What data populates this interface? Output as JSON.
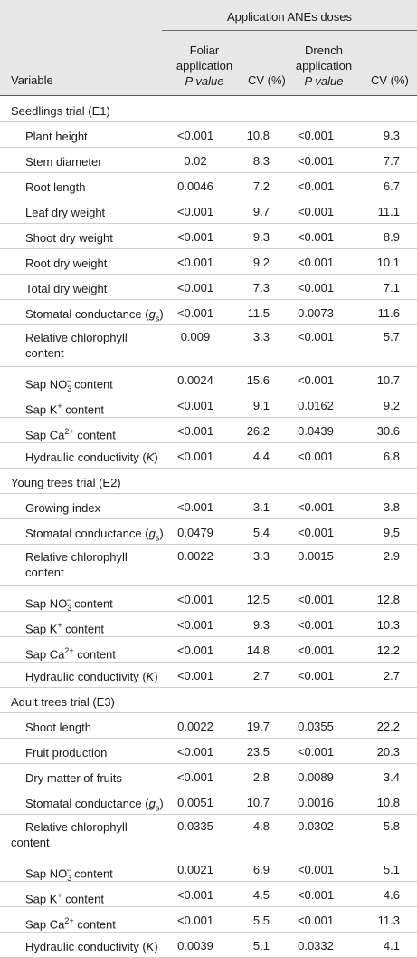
{
  "header": {
    "super": "Application ANEs doses",
    "variable": "Variable",
    "foliar": [
      "Foliar",
      "application",
      "P value"
    ],
    "drench": [
      "Drench",
      "application",
      "P value"
    ],
    "cv1": "CV (%)",
    "cv2": "CV (%)"
  },
  "rows": [
    {
      "type": "section",
      "label": "Seedlings trial (E1)"
    },
    {
      "label": "Plant height",
      "v": [
        "<0.001",
        "10.8",
        "<0.001",
        "9.3"
      ]
    },
    {
      "label": "Stem diameter",
      "v": [
        "0.02",
        "8.3",
        "<0.001",
        "7.7"
      ]
    },
    {
      "label": "Root length",
      "v": [
        "0.0046",
        "7.2",
        "<0.001",
        "6.7"
      ]
    },
    {
      "label": "Leaf dry weight",
      "v": [
        "<0.001",
        "9.7",
        "<0.001",
        "11.1"
      ]
    },
    {
      "label": "Shoot dry weight",
      "v": [
        "<0.001",
        "9.3",
        "<0.001",
        "8.9"
      ]
    },
    {
      "label": "Root dry weight",
      "v": [
        "<0.001",
        "9.2",
        "<0.001",
        "10.1"
      ]
    },
    {
      "label": "Total dry weight",
      "v": [
        "<0.001",
        "7.3",
        "<0.001",
        "7.1"
      ]
    },
    {
      "label": "Stomatal conductance (g",
      "sub": "s",
      "after": ")",
      "v": [
        "<0.001",
        "11.5",
        "0.0073",
        "11.6"
      ]
    },
    {
      "label": "Relative chlorophyll",
      "line2": "content",
      "tall": true,
      "indent2": false,
      "v": [
        "0.009",
        "3.3",
        "<0.001",
        "5.7"
      ]
    },
    {
      "label": "Sap NO",
      "sub": "3",
      "sup": "−",
      "after": " content",
      "v": [
        "0.0024",
        "15.6",
        "<0.001",
        "10.7"
      ]
    },
    {
      "label": "Sap K",
      "sup": "+",
      "after": " content",
      "v": [
        "<0.001",
        "9.1",
        "0.0162",
        "9.2"
      ]
    },
    {
      "label": "Sap Ca",
      "sup": "2+",
      "after": " content",
      "v": [
        "<0.001",
        "26.2",
        "0.0439",
        "30.6"
      ]
    },
    {
      "label": "Hydraulic conductivity (K)",
      "v": [
        "<0.001",
        "4.4",
        "<0.001",
        "6.8"
      ]
    },
    {
      "type": "section",
      "label": "Young trees trial (E2)"
    },
    {
      "label": "Growing index",
      "v": [
        "<0.001",
        "3.1",
        "<0.001",
        "3.8"
      ]
    },
    {
      "label": "Stomatal conductance (g",
      "sub": "s",
      "after": ")",
      "v": [
        "0.0479",
        "5.4",
        "<0.001",
        "9.5"
      ]
    },
    {
      "label": "Relative chlorophyll",
      "line2": "content",
      "tall": true,
      "indent2": false,
      "v": [
        "0.0022",
        "3.3",
        "0.0015",
        "2.9"
      ]
    },
    {
      "label": "Sap NO",
      "sub": "3",
      "sup": "−",
      "after": " content",
      "v": [
        "<0.001",
        "12.5",
        "<0.001",
        "12.8"
      ]
    },
    {
      "label": "Sap K",
      "sup": "+",
      "after": " content",
      "v": [
        "<0.001",
        "9.3",
        "<0.001",
        "10.3"
      ]
    },
    {
      "label": "Sap Ca",
      "sup": "2+",
      "after": " content",
      "v": [
        "<0.001",
        "14.8",
        "<0.001",
        "12.2"
      ]
    },
    {
      "label": "Hydraulic conductivity (K)",
      "v": [
        "<0.001",
        "2.7",
        "<0.001",
        "2.7"
      ]
    },
    {
      "type": "section",
      "label": "Adult trees trial (E3)"
    },
    {
      "label": "Shoot length",
      "v": [
        "0.0022",
        "19.7",
        "0.0355",
        "22.2"
      ]
    },
    {
      "label": "Fruit production",
      "v": [
        "<0.001",
        "23.5",
        "<0.001",
        "20.3"
      ]
    },
    {
      "label": "Dry matter of fruits",
      "v": [
        "<0.001",
        "2.8",
        "0.0089",
        "3.4"
      ]
    },
    {
      "label": "Stomatal conductance (g",
      "sub": "s",
      "after": ")",
      "v": [
        "0.0051",
        "10.7",
        "0.0016",
        "10.8"
      ]
    },
    {
      "label": "Relative chlorophyll",
      "line2": "content",
      "tall": true,
      "indent2": true,
      "v": [
        "0.0335",
        "4.8",
        "0.0302",
        "5.8"
      ]
    },
    {
      "label": "Sap NO",
      "sub": "3",
      "sup": "−",
      "after": " content",
      "v": [
        "0.0021",
        "6.9",
        "<0.001",
        "5.1"
      ]
    },
    {
      "label": "Sap K",
      "sup": "+",
      "after": " content",
      "v": [
        "<0.001",
        "4.5",
        "<0.001",
        "4.6"
      ]
    },
    {
      "label": "Sap Ca",
      "sup": "2+",
      "after": " content",
      "v": [
        "<0.001",
        "5.5",
        "<0.001",
        "11.3"
      ]
    },
    {
      "label": "Hydraulic conductivity (K)",
      "v": [
        "0.0039",
        "5.1",
        "0.0332",
        "4.1"
      ]
    }
  ]
}
